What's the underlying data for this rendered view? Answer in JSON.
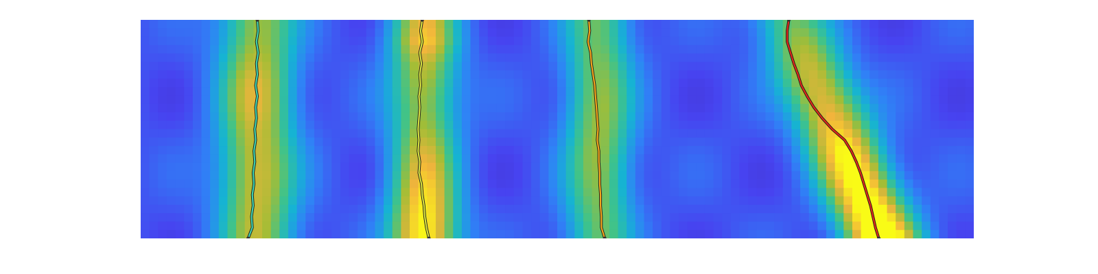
{
  "chart_data": {
    "type": "heatmap",
    "title": "",
    "xlabel": "",
    "ylabel": "",
    "axes_visible": false,
    "colormap": "parula",
    "colormap_stops": [
      "#3e26a8",
      "#4743f0",
      "#2f83f6",
      "#16b3d3",
      "#3ec38b",
      "#a3bd36",
      "#f2b43c",
      "#f9fb16"
    ],
    "clim": [
      0,
      1
    ],
    "xlim": [
      0,
      1
    ],
    "ylim": [
      0,
      1
    ],
    "grid": false,
    "legend": "none",
    "heatmap": {
      "bands": [
        {
          "center": 0.14,
          "width": 0.045,
          "intensity": [
            0.55,
            0.55,
            0.58,
            0.62,
            0.62,
            0.6,
            0.62,
            0.64,
            0.62,
            0.58,
            0.55
          ]
        },
        {
          "center": 0.34,
          "width": 0.04,
          "intensity": [
            0.62,
            0.7,
            0.6,
            0.58,
            0.55,
            0.55,
            0.6,
            0.66,
            0.74,
            0.82,
            0.86
          ]
        },
        {
          "center": 0.55,
          "width": 0.04,
          "intensity": [
            0.45,
            0.45,
            0.48,
            0.5,
            0.52,
            0.52,
            0.52,
            0.5,
            0.48,
            0.46,
            0.44
          ]
        },
        {
          "center_start": 0.78,
          "center_end": 0.89,
          "width": 0.045,
          "intensity": [
            0.45,
            0.52,
            0.6,
            0.66,
            0.7,
            0.74,
            0.8,
            0.84,
            0.88,
            0.94,
            1.0
          ]
        }
      ],
      "background": 0.18
    },
    "series": [
      {
        "color": "#3fd0b0",
        "x": [
          0.14,
          0.141,
          0.139,
          0.141,
          0.139,
          0.14,
          0.138,
          0.14,
          0.138,
          0.139,
          0.137,
          0.138,
          0.136,
          0.137,
          0.135,
          0.136,
          0.134,
          0.135,
          0.133,
          0.134,
          0.129
        ],
        "y": [
          1.0,
          0.95,
          0.9,
          0.85,
          0.8,
          0.75,
          0.7,
          0.65,
          0.6,
          0.55,
          0.5,
          0.45,
          0.4,
          0.35,
          0.3,
          0.25,
          0.2,
          0.15,
          0.1,
          0.05,
          0.0
        ]
      },
      {
        "color": "#d6e040",
        "x": [
          0.338,
          0.336,
          0.338,
          0.335,
          0.337,
          0.335,
          0.336,
          0.334,
          0.335,
          0.334,
          0.333,
          0.334,
          0.333,
          0.335,
          0.334,
          0.337,
          0.338,
          0.34,
          0.341,
          0.343,
          0.346
        ],
        "y": [
          1.0,
          0.95,
          0.9,
          0.85,
          0.8,
          0.75,
          0.7,
          0.65,
          0.6,
          0.55,
          0.5,
          0.45,
          0.4,
          0.35,
          0.3,
          0.25,
          0.2,
          0.15,
          0.1,
          0.05,
          0.0
        ]
      },
      {
        "color": "#f5a51c",
        "x": [
          0.538,
          0.539,
          0.537,
          0.54,
          0.541,
          0.543,
          0.545,
          0.546,
          0.547,
          0.548,
          0.549,
          0.548,
          0.55,
          0.55,
          0.551,
          0.551,
          0.552,
          0.552,
          0.553,
          0.553,
          0.557
        ],
        "y": [
          1.0,
          0.95,
          0.9,
          0.85,
          0.8,
          0.75,
          0.7,
          0.65,
          0.6,
          0.55,
          0.5,
          0.45,
          0.4,
          0.35,
          0.3,
          0.25,
          0.2,
          0.15,
          0.1,
          0.05,
          0.0
        ]
      },
      {
        "color": "#e0281c",
        "x": [
          0.778,
          0.776,
          0.776,
          0.78,
          0.784,
          0.789,
          0.793,
          0.8,
          0.808,
          0.818,
          0.83,
          0.845,
          0.853,
          0.859,
          0.864,
          0.868,
          0.872,
          0.876,
          0.879,
          0.882,
          0.886
        ],
        "y": [
          1.0,
          0.95,
          0.9,
          0.85,
          0.8,
          0.75,
          0.7,
          0.65,
          0.6,
          0.55,
          0.5,
          0.45,
          0.4,
          0.35,
          0.3,
          0.25,
          0.2,
          0.15,
          0.1,
          0.05,
          0.0
        ]
      }
    ]
  }
}
